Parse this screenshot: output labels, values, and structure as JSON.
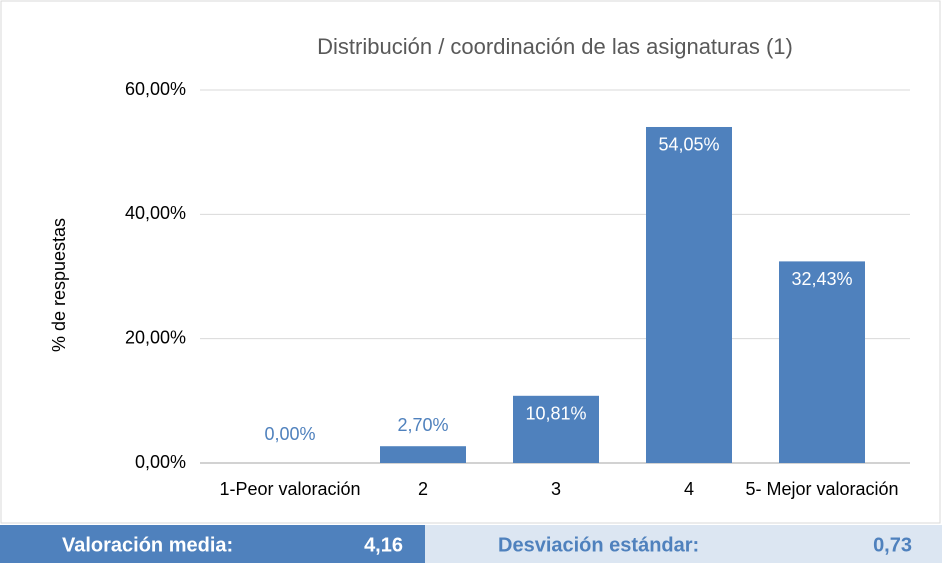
{
  "chart_data": {
    "type": "bar",
    "title": "Distribución / coordinación de las asignaturas (1)",
    "ylabel": "% de respuestas",
    "categories": [
      "1-Peor valoración",
      "2",
      "3",
      "4",
      "5- Mejor valoración"
    ],
    "values": [
      0,
      2.7,
      10.81,
      54.05,
      32.43
    ],
    "value_labels": [
      "0,00%",
      "2,70%",
      "10,81%",
      "54,05%",
      "32,43%"
    ],
    "color": "#4f81bd",
    "ylim": [
      0,
      60
    ],
    "yticks": [
      {
        "value": 0,
        "label": "0,00%"
      },
      {
        "value": 20,
        "label": "20,00%"
      },
      {
        "value": 40,
        "label": "40,00%"
      },
      {
        "value": 60,
        "label": "60,00%"
      }
    ],
    "grid": true
  },
  "stats": {
    "mean_label": "Valoración media:",
    "mean_value": "4,16",
    "sd_label": "Desviación estándar:",
    "sd_value": "0,73"
  }
}
